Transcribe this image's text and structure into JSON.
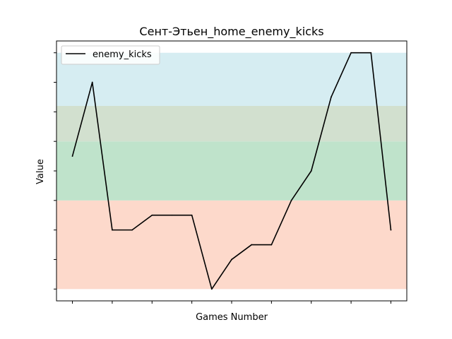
{
  "chart_data": {
    "type": "line",
    "title": "Сент-Этьен_home_enemy_kicks",
    "xlabel": "Games Number",
    "ylabel": "Value",
    "x": [
      0,
      1,
      2,
      3,
      4,
      5,
      6,
      7,
      8,
      9,
      10,
      11,
      12,
      13,
      14,
      15,
      16
    ],
    "series": [
      {
        "name": "enemy_kicks",
        "color": "#000000",
        "values": [
          9,
          14,
          4,
          4,
          5,
          5,
          5,
          0,
          2,
          3,
          3,
          6,
          8,
          13,
          16,
          16,
          4
        ]
      }
    ],
    "ylim": [
      -0.8,
      16.8
    ],
    "xlim": [
      -0.8,
      16.8
    ],
    "x_ticks": [
      0,
      2,
      4,
      6,
      8,
      10,
      12,
      14,
      16
    ],
    "y_ticks": [
      0,
      2,
      4,
      6,
      8,
      10,
      12,
      14,
      16
    ],
    "tick_labels_shown": false,
    "grid": false,
    "legend_position": "top-left",
    "background_bands": [
      {
        "from": 0,
        "to": 6,
        "color": "#fdd9cb"
      },
      {
        "from": 6,
        "to": 10,
        "color": "#bfe3cb"
      },
      {
        "from": 10,
        "to": 12.4,
        "color": "#d2e0cf"
      },
      {
        "from": 12.4,
        "to": 16,
        "color": "#d6edf2"
      }
    ]
  }
}
